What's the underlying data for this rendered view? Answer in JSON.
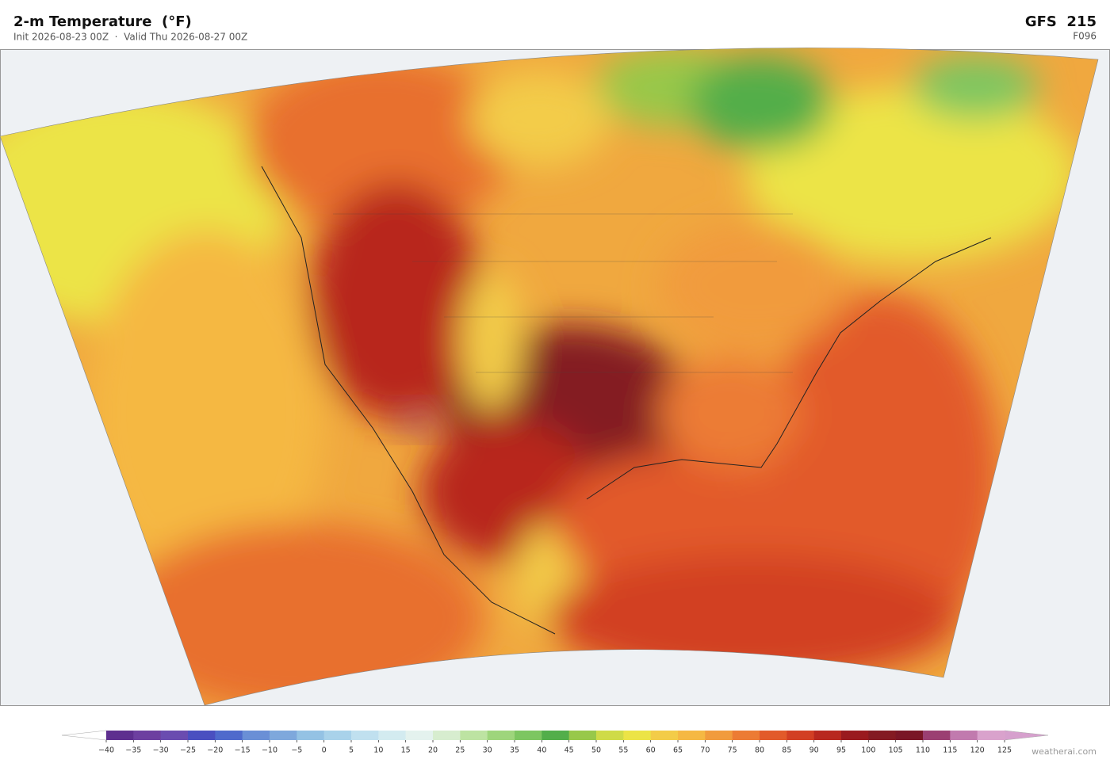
{
  "header": {
    "title": "2-m Temperature  (°F)",
    "subtitle": "Init 2026-08-23 00Z  ·  Valid Thu 2026-08-27 00Z",
    "model": "GFS  215",
    "forecast_hour": "F096"
  },
  "colorbar": {
    "ticks": [
      {
        "value": -40,
        "label": "−40"
      },
      {
        "value": -35,
        "label": "−35"
      },
      {
        "value": -30,
        "label": "−30"
      },
      {
        "value": -25,
        "label": "−25"
      },
      {
        "value": -20,
        "label": "−20"
      },
      {
        "value": -15,
        "label": "−15"
      },
      {
        "value": -10,
        "label": "−10"
      },
      {
        "value": -5,
        "label": "−5"
      },
      0,
      5,
      10,
      15,
      20,
      25,
      30,
      35,
      40,
      45,
      50,
      55,
      60,
      65,
      70,
      75,
      80,
      85,
      90,
      95,
      100,
      105,
      110,
      115,
      120,
      125
    ],
    "colors": [
      "#5e2f8f",
      "#6d3fa0",
      "#6a4cb0",
      "#4a4fc0",
      "#4f6acc",
      "#6a8fd6",
      "#7ea8dc",
      "#94c2e4",
      "#a9d2ea",
      "#c0e0ef",
      "#d3ebf0",
      "#e4f2ee",
      "#d7edcf",
      "#bde3a2",
      "#9ed57c",
      "#7dc661",
      "#52ae4a",
      "#98c84a",
      "#cfdb48",
      "#ece446",
      "#f3cc48",
      "#f5b843",
      "#f19b3d",
      "#ec7b34",
      "#e25a2a",
      "#d23f24",
      "#b8281f",
      "#9a1a1f",
      "#841a22",
      "#7a1626",
      "#9b3f72",
      "#c17aae",
      "#d9a2cc"
    ],
    "extend_colors": [
      "#ffffff",
      "#d6a0cd"
    ]
  },
  "footer": {
    "credit": "weatherai.com"
  }
}
